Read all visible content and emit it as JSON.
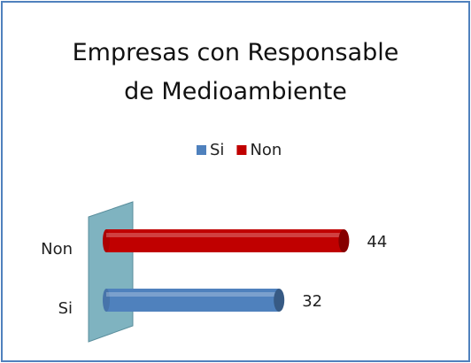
{
  "chart_data": {
    "type": "bar",
    "orientation": "horizontal",
    "title": "Empresas con Responsable de Medioambiente",
    "categories": [
      "Si",
      "Non"
    ],
    "values": [
      32,
      44
    ],
    "colors": [
      "#4f81bd",
      "#c00000"
    ],
    "xlim": [
      0,
      60
    ],
    "legend": "top"
  }
}
